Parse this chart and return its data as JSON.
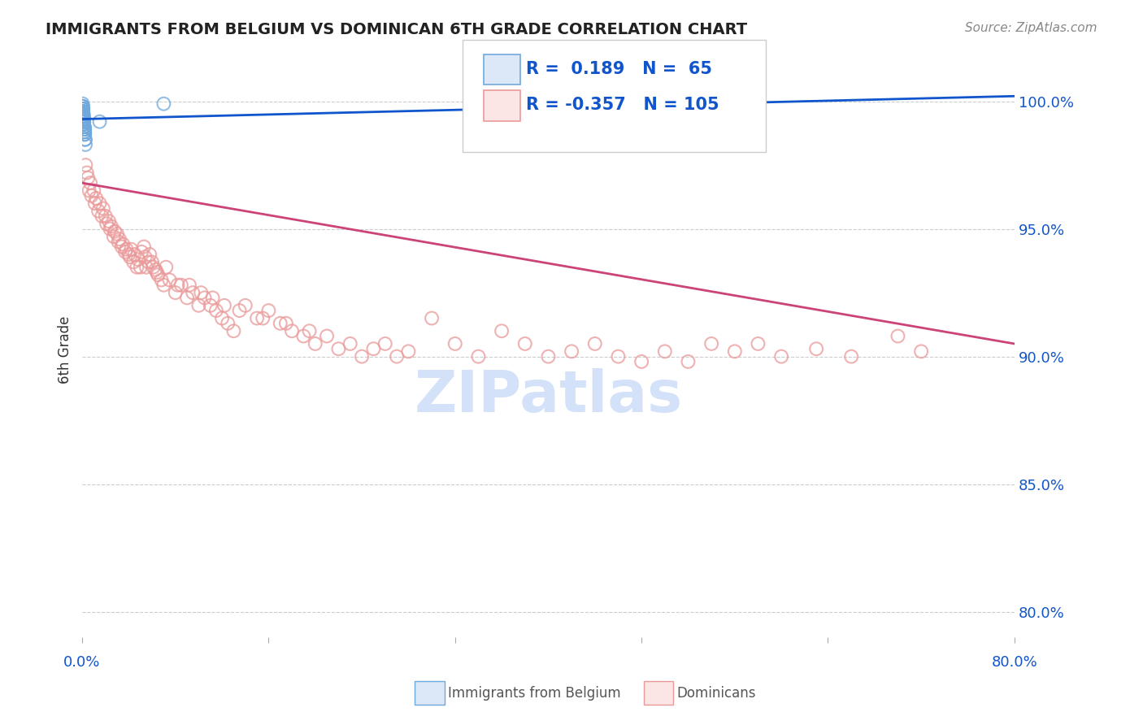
{
  "title": "IMMIGRANTS FROM BELGIUM VS DOMINICAN 6TH GRADE CORRELATION CHART",
  "source": "Source: ZipAtlas.com",
  "ylabel": "6th Grade",
  "xlim": [
    0.0,
    80.0
  ],
  "ylim": [
    79.0,
    101.5
  ],
  "legend_blue_R": "0.189",
  "legend_blue_N": "65",
  "legend_pink_R": "-0.357",
  "legend_pink_N": "105",
  "legend_label_blue": "Immigrants from Belgium",
  "legend_label_pink": "Dominicans",
  "blue_color": "#6fa8dc",
  "pink_color": "#ea9999",
  "blue_line_color": "#1155cc",
  "pink_line_color": "#cc4477",
  "background_color": "#ffffff",
  "watermark_text": "ZIPatlas",
  "watermark_color": "#c9daf8",
  "blue_x": [
    0.05,
    0.1,
    0.15,
    0.08,
    0.12,
    0.06,
    0.09,
    0.11,
    0.18,
    0.22,
    0.07,
    0.13,
    0.16,
    0.04,
    0.14,
    0.2,
    0.25,
    0.28,
    0.08,
    0.05,
    0.1,
    0.07,
    0.12,
    0.06,
    0.09,
    0.15,
    0.11,
    0.08,
    0.17,
    0.21,
    0.04,
    0.06,
    0.13,
    0.1,
    0.08,
    0.19,
    0.07,
    0.11,
    0.05,
    0.14,
    0.09,
    0.16,
    0.23,
    0.06,
    0.1,
    0.08,
    0.12,
    0.07,
    0.15,
    0.19,
    0.04,
    0.11,
    0.06,
    0.09,
    0.13,
    0.27,
    0.08,
    0.1,
    0.05,
    0.16,
    0.07,
    0.12,
    0.22,
    1.5,
    7.0
  ],
  "blue_y": [
    99.8,
    99.5,
    99.2,
    99.7,
    99.3,
    99.6,
    99.4,
    99.1,
    99.0,
    98.8,
    99.5,
    99.2,
    99.0,
    99.9,
    99.1,
    98.7,
    98.5,
    98.3,
    99.4,
    99.6,
    99.3,
    99.5,
    99.2,
    99.7,
    99.4,
    99.1,
    99.3,
    99.5,
    99.0,
    98.9,
    99.8,
    99.6,
    99.2,
    99.4,
    99.5,
    98.8,
    99.6,
    99.3,
    99.7,
    99.1,
    99.4,
    99.0,
    98.7,
    99.6,
    99.3,
    99.5,
    99.2,
    99.6,
    99.0,
    98.9,
    99.8,
    99.3,
    99.6,
    99.4,
    99.2,
    98.5,
    99.5,
    99.3,
    99.7,
    99.0,
    99.6,
    99.2,
    98.9,
    99.2,
    99.9
  ],
  "pink_x": [
    0.3,
    0.5,
    0.7,
    1.0,
    1.2,
    1.5,
    1.8,
    2.0,
    2.3,
    2.5,
    2.8,
    3.0,
    3.2,
    3.5,
    3.8,
    4.0,
    4.2,
    4.5,
    4.8,
    5.0,
    5.3,
    5.5,
    5.8,
    6.0,
    6.3,
    6.5,
    6.8,
    7.0,
    7.5,
    8.0,
    8.5,
    9.0,
    9.5,
    10.0,
    10.5,
    11.0,
    11.5,
    12.0,
    12.5,
    13.0,
    14.0,
    15.0,
    16.0,
    17.0,
    18.0,
    19.0,
    20.0,
    21.0,
    22.0,
    23.0,
    24.0,
    25.0,
    26.0,
    27.0,
    28.0,
    30.0,
    32.0,
    34.0,
    36.0,
    38.0,
    40.0,
    42.0,
    44.0,
    46.0,
    48.0,
    50.0,
    52.0,
    54.0,
    56.0,
    58.0,
    60.0,
    63.0,
    66.0,
    70.0,
    72.0,
    0.4,
    0.6,
    0.8,
    1.1,
    1.4,
    1.7,
    2.1,
    2.4,
    2.7,
    3.1,
    3.4,
    3.7,
    4.1,
    4.4,
    4.7,
    5.1,
    5.4,
    5.7,
    6.1,
    6.4,
    7.2,
    8.2,
    9.2,
    10.2,
    11.2,
    12.2,
    13.5,
    15.5,
    17.5,
    19.5
  ],
  "pink_y": [
    97.5,
    97.0,
    96.8,
    96.5,
    96.2,
    96.0,
    95.8,
    95.5,
    95.3,
    95.1,
    94.9,
    94.8,
    94.6,
    94.4,
    94.2,
    94.0,
    94.2,
    94.0,
    93.8,
    93.5,
    94.3,
    93.5,
    94.0,
    93.7,
    93.4,
    93.2,
    93.0,
    92.8,
    93.0,
    92.5,
    92.8,
    92.3,
    92.5,
    92.0,
    92.3,
    92.0,
    91.8,
    91.5,
    91.3,
    91.0,
    92.0,
    91.5,
    91.8,
    91.3,
    91.0,
    90.8,
    90.5,
    90.8,
    90.3,
    90.5,
    90.0,
    90.3,
    90.5,
    90.0,
    90.2,
    91.5,
    90.5,
    90.0,
    91.0,
    90.5,
    90.0,
    90.2,
    90.5,
    90.0,
    89.8,
    90.2,
    89.8,
    90.5,
    90.2,
    90.5,
    90.0,
    90.3,
    90.0,
    90.8,
    90.2,
    97.2,
    96.5,
    96.3,
    96.0,
    95.7,
    95.5,
    95.2,
    95.0,
    94.7,
    94.5,
    94.3,
    94.1,
    93.9,
    93.7,
    93.5,
    94.1,
    93.9,
    93.7,
    93.5,
    93.3,
    93.5,
    92.8,
    92.8,
    92.5,
    92.3,
    92.0,
    91.8,
    91.5,
    91.3,
    91.0
  ],
  "blue_trend_x": [
    0.0,
    80.0
  ],
  "blue_trend_y": [
    99.3,
    100.2
  ],
  "pink_trend_x": [
    0.0,
    80.0
  ],
  "pink_trend_y": [
    96.8,
    90.5
  ],
  "y_tick_vals": [
    80.0,
    85.0,
    90.0,
    95.0,
    100.0
  ]
}
